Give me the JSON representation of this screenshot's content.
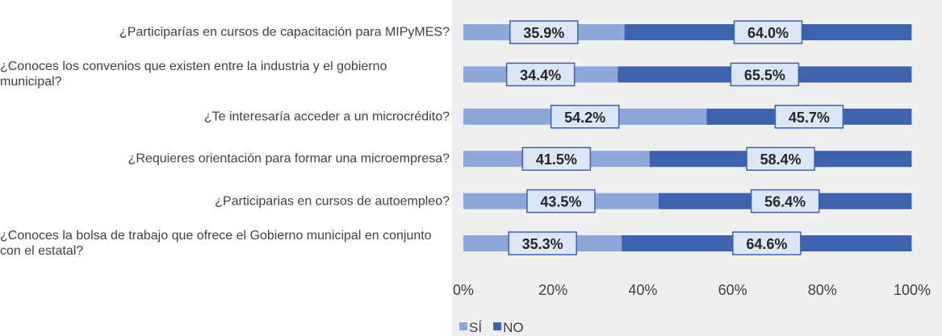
{
  "chart_data": {
    "type": "stacked_barh",
    "categories": [
      "¿Participarías en cursos de capacitación para MIPyMES?",
      "¿Conoces los convenios que existen entre la industria y el gobierno municipal?",
      "¿Te interesaría acceder a un microcrédito?",
      "¿Requieres orientación para formar una microempresa?",
      "¿Participarias en cursos de autoempleo?",
      "¿Conoces la bolsa de trabajo que ofrece el Gobierno municipal en conjunto con el estatal?"
    ],
    "series": [
      {
        "name": "SÍ",
        "color": "#8ea7d9",
        "values": [
          35.9,
          34.4,
          54.2,
          41.5,
          43.5,
          35.3
        ],
        "value_labels": [
          "35.9%",
          "34.4%",
          "54.2%",
          "41.5%",
          "43.5%",
          "35.3%"
        ]
      },
      {
        "name": "NO",
        "color": "#3d62b0",
        "values": [
          64.0,
          65.5,
          45.7,
          58.4,
          56.4,
          64.6
        ],
        "value_labels": [
          "64.0%",
          "65.5%",
          "45.7%",
          "58.4%",
          "56.4%",
          "64.6%"
        ]
      }
    ],
    "xlim": [
      0,
      100
    ],
    "xticks": [
      {
        "value": 0,
        "label": "0%"
      },
      {
        "value": 20,
        "label": "20%"
      },
      {
        "value": 40,
        "label": "40%"
      },
      {
        "value": 60,
        "label": "60%"
      },
      {
        "value": 80,
        "label": "80%"
      },
      {
        "value": 100,
        "label": "100%"
      }
    ],
    "legend": "bottom"
  }
}
